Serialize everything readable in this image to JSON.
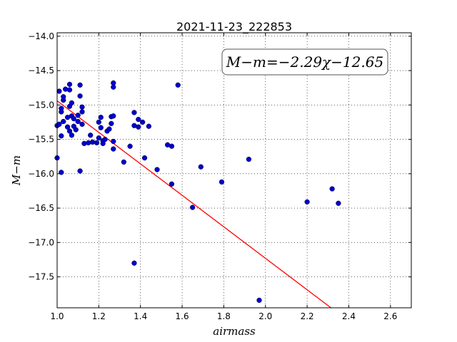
{
  "chart_data": {
    "type": "scatter",
    "title": "2021-11-23_222853",
    "xlabel": "airmass",
    "ylabel": "M−m",
    "xlim": [
      1.0,
      2.7
    ],
    "ylim": [
      -13.95,
      -17.95
    ],
    "y_inverted": true,
    "grid": true,
    "x_ticks": [
      1.0,
      1.2,
      1.4,
      1.6,
      1.8,
      2.0,
      2.2,
      2.4,
      2.6
    ],
    "x_tick_labels": [
      "1.0",
      "1.2",
      "1.4",
      "1.6",
      "1.8",
      "2.0",
      "2.2",
      "2.4",
      "2.6"
    ],
    "y_ticks": [
      -14.0,
      -14.5,
      -15.0,
      -15.5,
      -16.0,
      -16.5,
      -17.0,
      -17.5
    ],
    "y_tick_labels": [
      "−14.0",
      "−14.5",
      "−15.0",
      "−15.5",
      "−16.0",
      "−16.5",
      "−17.0",
      "−17.5"
    ],
    "annotation": "M−m=−2.29χ−12.65",
    "fit": {
      "slope": -2.29,
      "intercept": -12.65,
      "color": "#ff0000"
    },
    "point_color": "#0000cc",
    "points": [
      [
        1.0,
        -15.3
      ],
      [
        1.0,
        -15.77
      ],
      [
        1.01,
        -14.8
      ],
      [
        1.01,
        -15.28
      ],
      [
        1.02,
        -15.05
      ],
      [
        1.02,
        -15.1
      ],
      [
        1.02,
        -15.45
      ],
      [
        1.02,
        -15.98
      ],
      [
        1.03,
        -14.88
      ],
      [
        1.03,
        -14.93
      ],
      [
        1.03,
        -15.24
      ],
      [
        1.04,
        -14.77
      ],
      [
        1.05,
        -15.32
      ],
      [
        1.05,
        -15.18
      ],
      [
        1.06,
        -14.7
      ],
      [
        1.06,
        -14.78
      ],
      [
        1.06,
        -15.02
      ],
      [
        1.06,
        -15.38
      ],
      [
        1.07,
        -14.97
      ],
      [
        1.07,
        -15.16
      ],
      [
        1.07,
        -15.44
      ],
      [
        1.08,
        -15.31
      ],
      [
        1.08,
        -15.2
      ],
      [
        1.09,
        -15.36
      ],
      [
        1.1,
        -15.15
      ],
      [
        1.1,
        -15.24
      ],
      [
        1.11,
        -15.96
      ],
      [
        1.11,
        -14.71
      ],
      [
        1.11,
        -14.87
      ],
      [
        1.12,
        -15.03
      ],
      [
        1.12,
        -15.1
      ],
      [
        1.12,
        -15.28
      ],
      [
        1.13,
        -15.56
      ],
      [
        1.15,
        -15.55
      ],
      [
        1.16,
        -15.44
      ],
      [
        1.17,
        -15.54
      ],
      [
        1.19,
        -15.55
      ],
      [
        1.2,
        -15.25
      ],
      [
        1.2,
        -15.48
      ],
      [
        1.21,
        -15.33
      ],
      [
        1.21,
        -15.18
      ],
      [
        1.22,
        -15.52
      ],
      [
        1.22,
        -15.56
      ],
      [
        1.23,
        -15.5
      ],
      [
        1.24,
        -15.38
      ],
      [
        1.25,
        -15.35
      ],
      [
        1.26,
        -15.17
      ],
      [
        1.26,
        -15.27
      ],
      [
        1.27,
        -14.68
      ],
      [
        1.27,
        -14.74
      ],
      [
        1.27,
        -15.16
      ],
      [
        1.27,
        -15.53
      ],
      [
        1.27,
        -15.64
      ],
      [
        1.32,
        -15.83
      ],
      [
        1.35,
        -15.6
      ],
      [
        1.37,
        -15.11
      ],
      [
        1.37,
        -15.3
      ],
      [
        1.37,
        -17.3
      ],
      [
        1.39,
        -15.32
      ],
      [
        1.39,
        -15.21
      ],
      [
        1.41,
        -15.25
      ],
      [
        1.42,
        -15.77
      ],
      [
        1.44,
        -15.31
      ],
      [
        1.48,
        -15.94
      ],
      [
        1.53,
        -15.58
      ],
      [
        1.55,
        -15.6
      ],
      [
        1.55,
        -16.15
      ],
      [
        1.58,
        -14.71
      ],
      [
        1.65,
        -16.49
      ],
      [
        1.69,
        -15.9
      ],
      [
        1.79,
        -16.12
      ],
      [
        1.92,
        -15.79
      ],
      [
        1.97,
        -17.84
      ],
      [
        2.2,
        -16.41
      ],
      [
        2.32,
        -16.22
      ],
      [
        2.35,
        -16.43
      ]
    ]
  }
}
